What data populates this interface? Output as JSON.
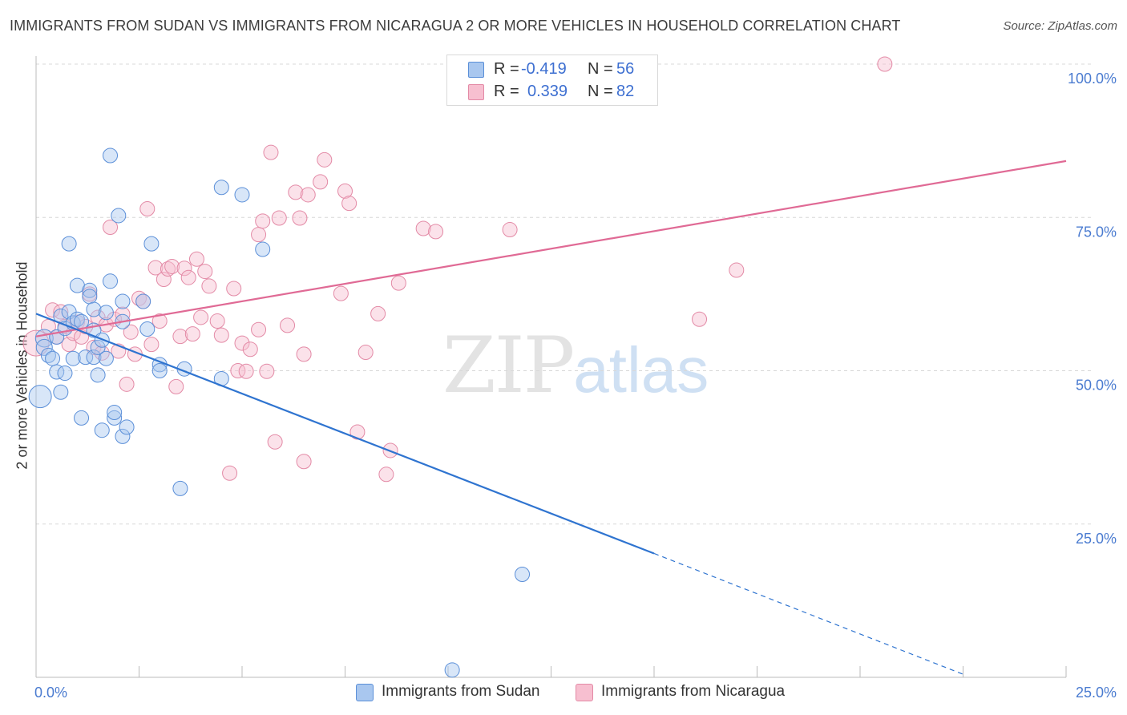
{
  "header": {
    "title": "IMMIGRANTS FROM SUDAN VS IMMIGRANTS FROM NICARAGUA 2 OR MORE VEHICLES IN HOUSEHOLD CORRELATION CHART",
    "source": "Source: ZipAtlas.com"
  },
  "watermark": {
    "zip": "ZIP",
    "atlas": "atlas"
  },
  "stats": {
    "sudan": {
      "r_label": "R =",
      "r_value": "-0.419",
      "n_label": "N =",
      "n_value": "56"
    },
    "nicaragua": {
      "r_label": "R =",
      "r_value": "0.339",
      "n_label": "N =",
      "n_value": "82"
    }
  },
  "legend": {
    "sudan": "Immigrants from Sudan",
    "nicaragua": "Immigrants from Nicaragua"
  },
  "colors": {
    "sudan_fill": "#a9c7ef",
    "sudan_stroke": "#5b8fd8",
    "sudan_line": "#2f74d0",
    "nicaragua_fill": "#f7bfd0",
    "nicaragua_stroke": "#e38aa6",
    "nicaragua_line": "#e06a95",
    "grid": "#d8d8d8",
    "tick_label": "#4a7bd0"
  },
  "chart_data": {
    "type": "scatter",
    "title": "IMMIGRANTS FROM SUDAN VS IMMIGRANTS FROM NICARAGUA 2 OR MORE VEHICLES IN HOUSEHOLD CORRELATION CHART",
    "xlabel": "",
    "ylabel": "2 or more Vehicles in Household",
    "xlim": [
      0,
      25
    ],
    "ylim": [
      0,
      101
    ],
    "x_ticks": [
      "0.0%",
      "25.0%"
    ],
    "y_ticks": [
      "25.0%",
      "50.0%",
      "75.0%",
      "100.0%"
    ],
    "y_tick_values": [
      25,
      50,
      75,
      100
    ],
    "grid": "horizontal dashed",
    "legend_position": "bottom",
    "series": [
      {
        "name": "Immigrants from Sudan",
        "r": -0.419,
        "n": 56,
        "trend": {
          "x0": 0,
          "y0": 59.3,
          "x1": 15,
          "y1": 20.2,
          "dashed_to_x": 22.5,
          "dashed_to_y": 0.5
        },
        "points": [
          [
            0.1,
            45.8,
            14
          ],
          [
            0.2,
            55.3,
            11
          ],
          [
            0.2,
            53.8,
            10
          ],
          [
            0.3,
            52.5,
            9
          ],
          [
            0.4,
            52.0,
            9
          ],
          [
            0.5,
            49.8,
            9
          ],
          [
            0.5,
            55.5,
            9
          ],
          [
            0.6,
            46.5,
            9
          ],
          [
            0.6,
            58.9,
            9
          ],
          [
            0.7,
            56.9,
            9
          ],
          [
            0.7,
            49.6,
            9
          ],
          [
            0.8,
            59.6,
            9
          ],
          [
            0.8,
            70.7,
            9
          ],
          [
            0.9,
            57.8,
            9
          ],
          [
            0.9,
            52.0,
            9
          ],
          [
            1.0,
            58.4,
            9
          ],
          [
            1.0,
            63.9,
            9
          ],
          [
            1.1,
            58.0,
            9
          ],
          [
            1.1,
            42.3,
            9
          ],
          [
            1.2,
            52.2,
            9
          ],
          [
            1.3,
            63.1,
            9
          ],
          [
            1.3,
            62.1,
            9
          ],
          [
            1.4,
            60.0,
            9
          ],
          [
            1.4,
            56.6,
            9
          ],
          [
            1.4,
            52.2,
            9
          ],
          [
            1.5,
            49.3,
            9
          ],
          [
            1.5,
            53.8,
            9
          ],
          [
            1.6,
            55.0,
            9
          ],
          [
            1.6,
            40.3,
            9
          ],
          [
            1.7,
            59.5,
            9
          ],
          [
            1.7,
            52.0,
            9
          ],
          [
            1.8,
            85.1,
            9
          ],
          [
            1.8,
            64.6,
            9
          ],
          [
            1.9,
            42.3,
            9
          ],
          [
            1.9,
            43.2,
            9
          ],
          [
            2.0,
            75.3,
            9
          ],
          [
            2.1,
            39.3,
            9
          ],
          [
            2.1,
            61.3,
            9
          ],
          [
            2.1,
            58.0,
            9
          ],
          [
            2.2,
            40.8,
            9
          ],
          [
            2.6,
            61.3,
            9
          ],
          [
            2.7,
            56.8,
            9
          ],
          [
            2.8,
            70.7,
            9
          ],
          [
            3.0,
            51.0,
            9
          ],
          [
            3.0,
            50.0,
            9
          ],
          [
            3.5,
            30.8,
            9
          ],
          [
            3.6,
            50.3,
            9
          ],
          [
            4.5,
            48.7,
            9
          ],
          [
            4.5,
            79.9,
            9
          ],
          [
            5.0,
            78.7,
            9
          ],
          [
            5.5,
            69.8,
            9
          ],
          [
            11.8,
            16.8,
            9
          ],
          [
            10.1,
            1.2,
            9
          ]
        ]
      },
      {
        "name": "Immigrants from Nicaragua",
        "r": 0.339,
        "n": 82,
        "trend": {
          "x0": 0,
          "y0": 55.6,
          "x1": 25,
          "y1": 84.2
        },
        "points": [
          [
            0.0,
            54.5,
            16
          ],
          [
            0.3,
            57.2,
            9
          ],
          [
            0.4,
            59.9,
            9
          ],
          [
            0.5,
            55.5,
            9
          ],
          [
            0.6,
            59.6,
            9
          ],
          [
            0.7,
            57.2,
            9
          ],
          [
            0.8,
            54.3,
            9
          ],
          [
            0.9,
            56.1,
            9
          ],
          [
            1.0,
            57.9,
            9
          ],
          [
            1.1,
            55.5,
            9
          ],
          [
            1.2,
            57.2,
            9
          ],
          [
            1.3,
            62.5,
            9
          ],
          [
            1.4,
            53.8,
            9
          ],
          [
            1.5,
            58.7,
            9
          ],
          [
            1.6,
            52.9,
            9
          ],
          [
            1.7,
            57.5,
            9
          ],
          [
            1.8,
            73.4,
            9
          ],
          [
            1.9,
            58.4,
            9
          ],
          [
            2.0,
            53.2,
            9
          ],
          [
            2.1,
            59.2,
            9
          ],
          [
            2.2,
            47.8,
            9
          ],
          [
            2.3,
            56.3,
            9
          ],
          [
            2.4,
            52.7,
            9
          ],
          [
            2.5,
            61.8,
            9
          ],
          [
            2.6,
            61.3,
            9
          ],
          [
            2.7,
            76.4,
            9
          ],
          [
            2.8,
            54.3,
            9
          ],
          [
            2.9,
            66.8,
            9
          ],
          [
            3.0,
            58.1,
            9
          ],
          [
            3.1,
            64.9,
            9
          ],
          [
            3.2,
            66.6,
            9
          ],
          [
            3.3,
            67.0,
            9
          ],
          [
            3.4,
            47.4,
            9
          ],
          [
            3.5,
            55.6,
            9
          ],
          [
            3.6,
            66.7,
            9
          ],
          [
            3.7,
            65.2,
            9
          ],
          [
            3.8,
            56.0,
            9
          ],
          [
            3.9,
            68.2,
            9
          ],
          [
            4.0,
            58.7,
            9
          ],
          [
            4.1,
            66.2,
            9
          ],
          [
            4.2,
            63.8,
            9
          ],
          [
            4.4,
            58.1,
            9
          ],
          [
            4.5,
            55.8,
            9
          ],
          [
            4.7,
            33.3,
            9
          ],
          [
            4.8,
            63.4,
            9
          ],
          [
            4.9,
            50.0,
            9
          ],
          [
            5.0,
            54.5,
            9
          ],
          [
            5.1,
            49.9,
            9
          ],
          [
            5.2,
            53.5,
            9
          ],
          [
            5.4,
            56.7,
            9
          ],
          [
            5.4,
            72.2,
            9
          ],
          [
            5.5,
            74.4,
            9
          ],
          [
            5.6,
            49.9,
            9
          ],
          [
            5.7,
            85.6,
            9
          ],
          [
            5.8,
            38.4,
            9
          ],
          [
            5.9,
            74.9,
            9
          ],
          [
            6.1,
            57.4,
            9
          ],
          [
            6.3,
            79.1,
            9
          ],
          [
            6.4,
            74.9,
            9
          ],
          [
            6.5,
            52.7,
            9
          ],
          [
            6.5,
            35.2,
            9
          ],
          [
            6.6,
            78.7,
            9
          ],
          [
            6.9,
            80.8,
            9
          ],
          [
            7.0,
            84.4,
            9
          ],
          [
            7.4,
            62.6,
            9
          ],
          [
            7.5,
            79.3,
            9
          ],
          [
            7.6,
            77.3,
            9
          ],
          [
            7.8,
            40.0,
            9
          ],
          [
            8.0,
            53.0,
            9
          ],
          [
            8.3,
            59.3,
            9
          ],
          [
            8.5,
            33.1,
            9
          ],
          [
            8.6,
            37.0,
            9
          ],
          [
            8.8,
            64.3,
            9
          ],
          [
            9.4,
            73.2,
            9
          ],
          [
            9.7,
            72.7,
            9
          ],
          [
            11.5,
            73.0,
            9
          ],
          [
            16.1,
            58.4,
            9
          ],
          [
            17.0,
            66.4,
            9
          ],
          [
            20.6,
            100.0,
            9
          ]
        ]
      }
    ]
  }
}
